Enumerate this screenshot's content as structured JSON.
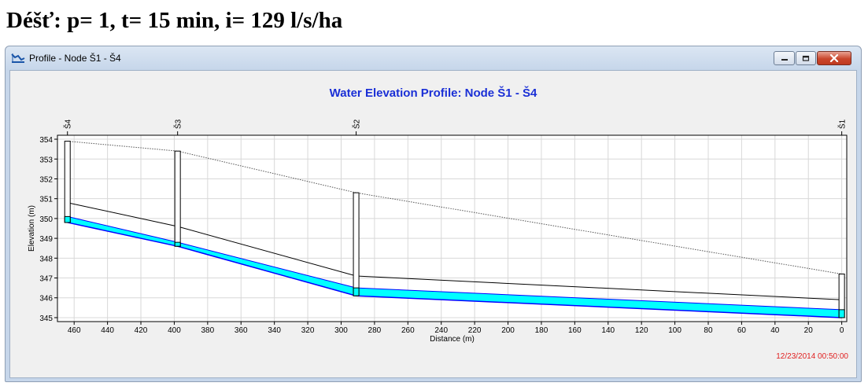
{
  "heading": "Déšť: p= 1, t= 15 min, i= 129 l/s/ha",
  "window": {
    "title": "Profile - Node Š1 - Š4",
    "icon": "profile-chart-icon",
    "controls": [
      "minimize-icon",
      "maximize-icon",
      "close-icon"
    ]
  },
  "timestamp": "12/23/2014 00:50:00",
  "colors": {
    "title": "#1a2fd6",
    "water": "#00ffff",
    "water_edge": "#0000ff",
    "timestamp": "#e02020",
    "grid": "#d8d8d8"
  },
  "chart_data": {
    "type": "line",
    "title": "Water Elevation Profile:  Node Š1 - Š4",
    "xlabel": "Distance (m)",
    "ylabel": "Elevation (m)",
    "xlim": [
      470,
      -3
    ],
    "ylim": [
      344.8,
      354.2
    ],
    "x_ticks": [
      "460",
      "440",
      "420",
      "400",
      "380",
      "360",
      "340",
      "320",
      "300",
      "280",
      "260",
      "240",
      "220",
      "200",
      "180",
      "160",
      "140",
      "120",
      "100",
      "80",
      "60",
      "40",
      "20",
      "0"
    ],
    "y_ticks": [
      "345",
      "346",
      "347",
      "348",
      "349",
      "350",
      "351",
      "352",
      "353",
      "354"
    ],
    "grid": true,
    "nodes": [
      {
        "name": "Š4",
        "x": 464,
        "invert": 349.8,
        "rim": 353.9
      },
      {
        "name": "Š3",
        "x": 398,
        "invert": 348.6,
        "rim": 353.4
      },
      {
        "name": "Š2",
        "x": 291,
        "invert": 346.1,
        "rim": 351.3
      },
      {
        "name": "Š1",
        "x": 0,
        "invert": 345.0,
        "rim": 347.2
      }
    ],
    "series": [
      {
        "values": [
          349.8,
          348.6,
          346.1,
          345.0
        ]
      },
      {
        "values": [
          350.1,
          348.8,
          346.5,
          345.4
        ]
      },
      {
        "values": [
          350.8,
          349.6,
          347.1,
          345.9
        ]
      },
      {
        "values": [
          353.9,
          353.4,
          351.3,
          347.2
        ]
      }
    ]
  }
}
